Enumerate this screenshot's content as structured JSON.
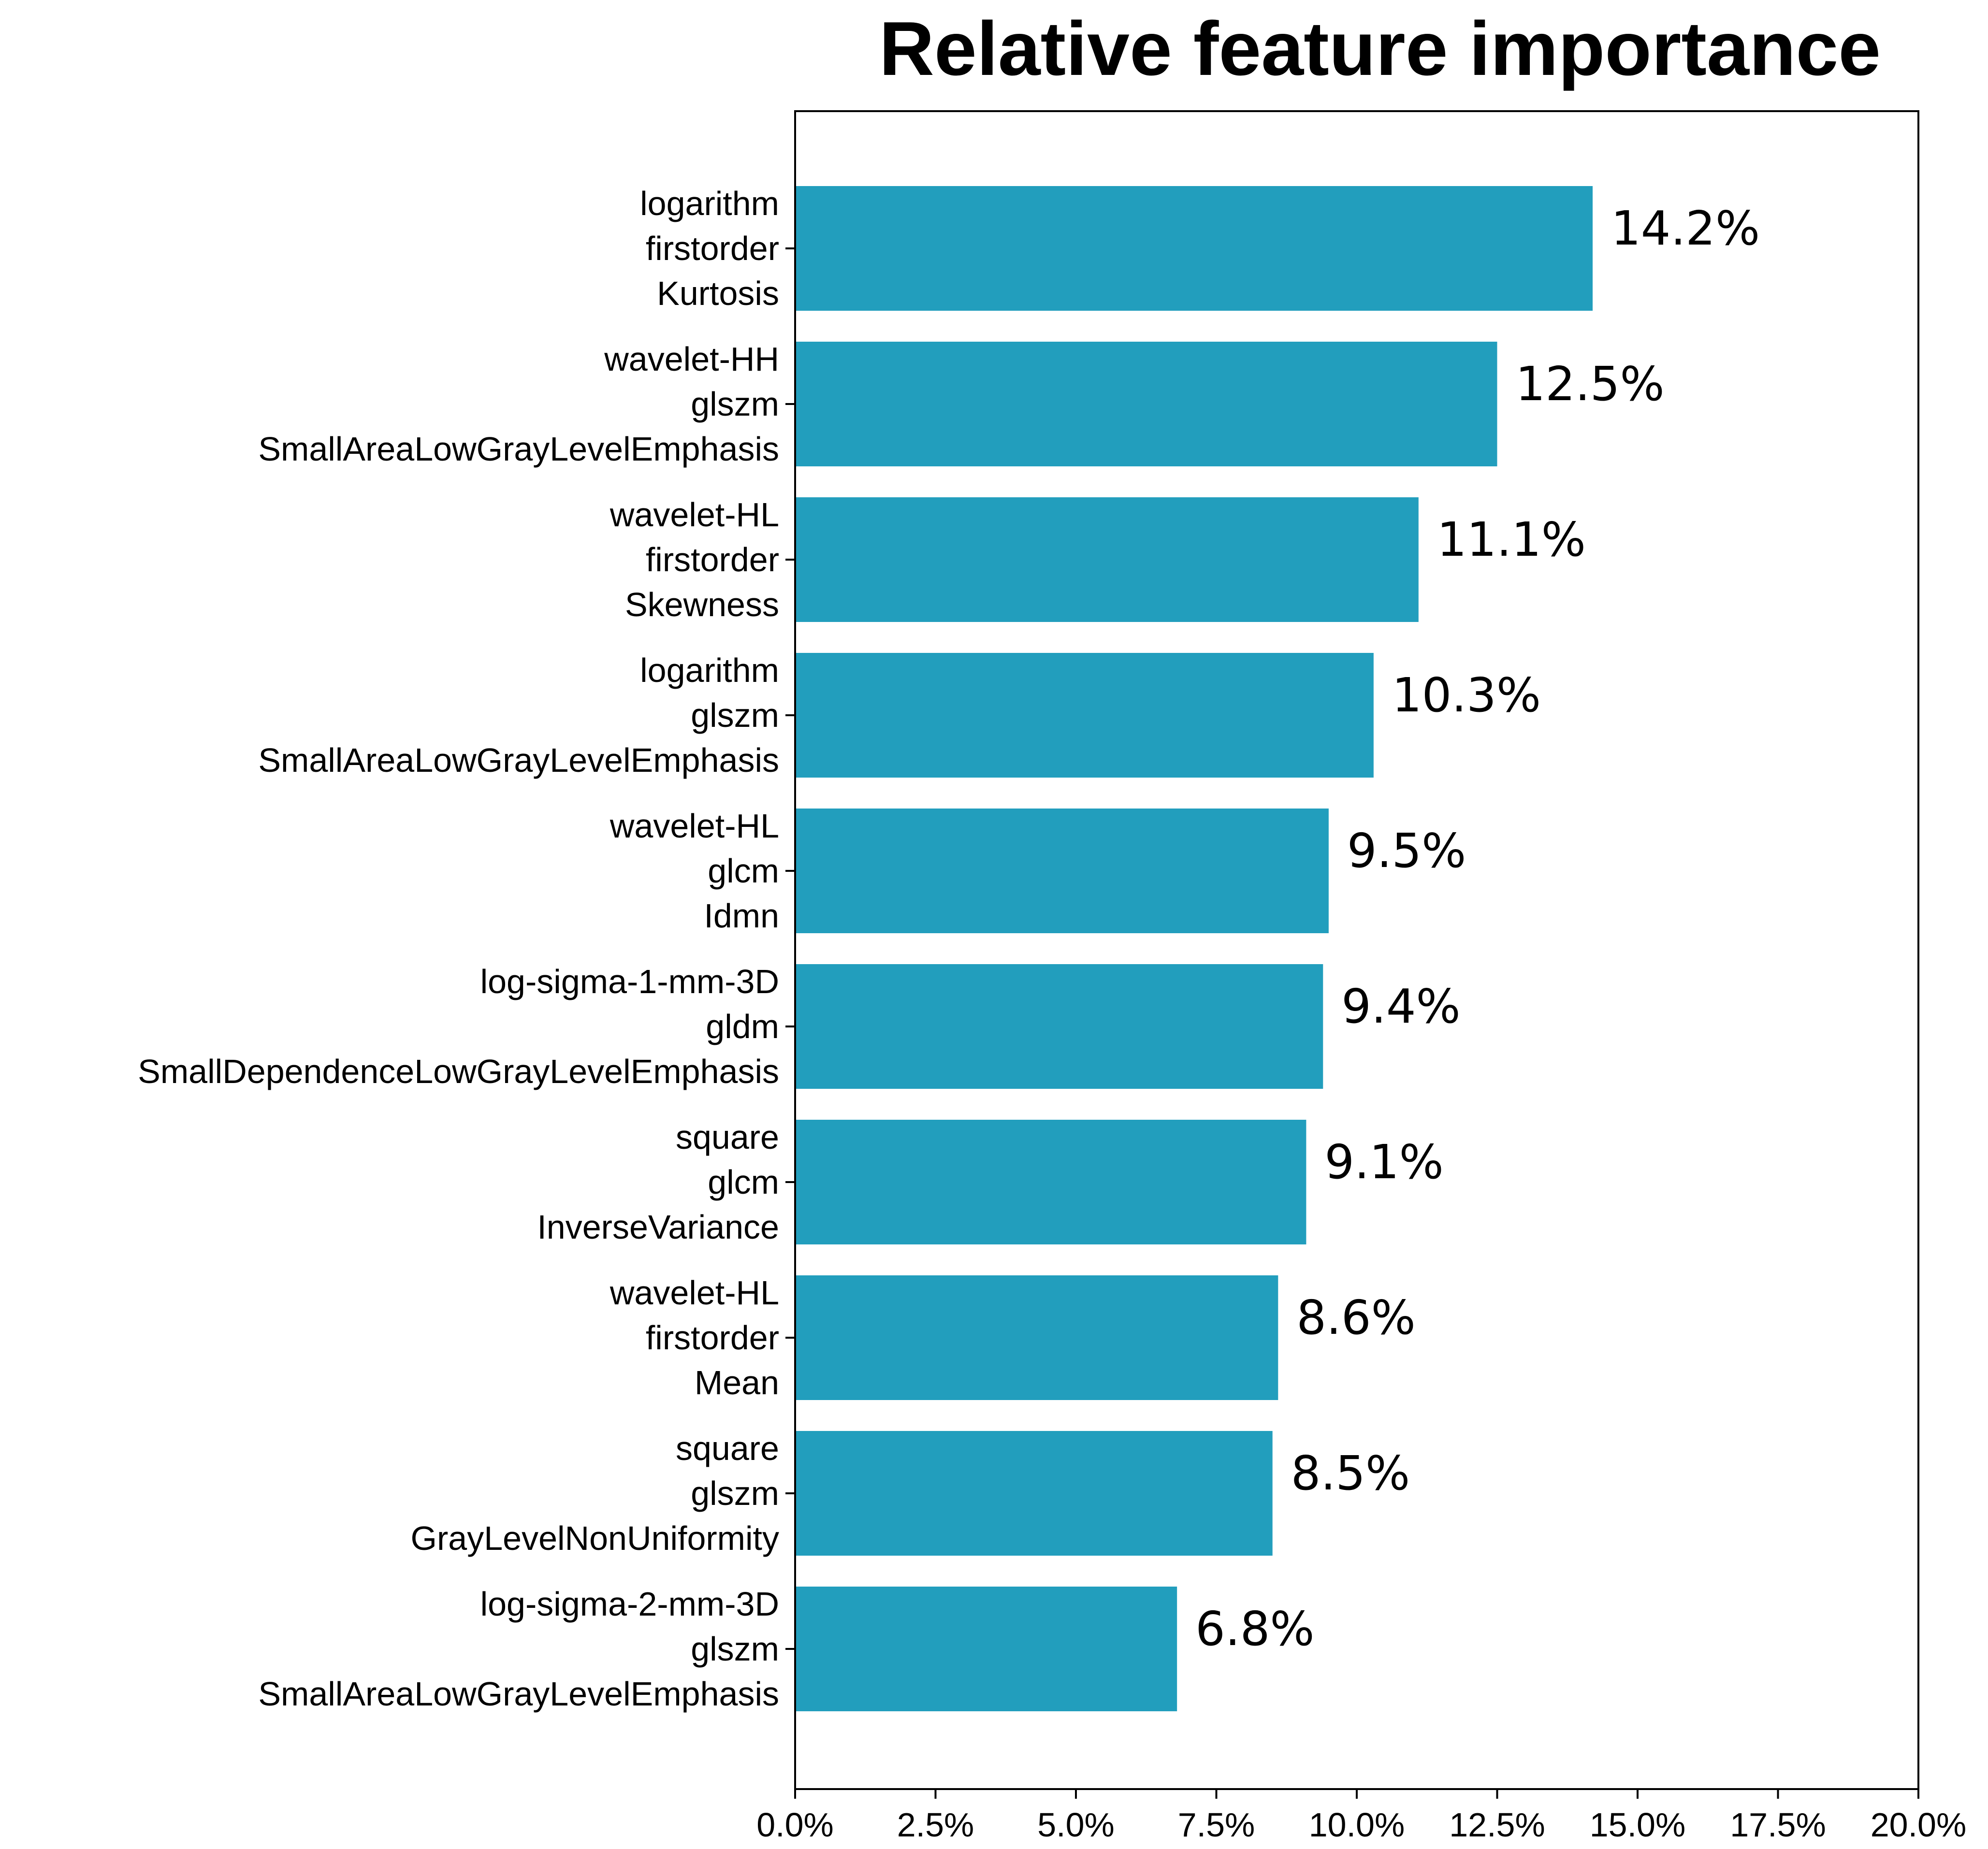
{
  "chart_data": {
    "type": "bar",
    "orientation": "horizontal",
    "title": "Relative feature importance",
    "xlabel": "",
    "ylabel": "",
    "xlim": [
      0,
      20
    ],
    "x_ticks": [
      0,
      2.5,
      5,
      7.5,
      10,
      12.5,
      15,
      17.5,
      20
    ],
    "x_tick_labels": [
      "0.0%",
      "2.5%",
      "5.0%",
      "7.5%",
      "10.0%",
      "12.5%",
      "15.0%",
      "17.5%",
      "20.0%"
    ],
    "grid": false,
    "legend": "none",
    "bar_color": "#229EBD",
    "categories": [
      [
        "logarithm",
        "firstorder",
        "Kurtosis"
      ],
      [
        "wavelet-HH",
        "glszm",
        "SmallAreaLowGrayLevelEmphasis"
      ],
      [
        "wavelet-HL",
        "firstorder",
        "Skewness"
      ],
      [
        "logarithm",
        "glszm",
        "SmallAreaLowGrayLevelEmphasis"
      ],
      [
        "wavelet-HL",
        "glcm",
        "Idmn"
      ],
      [
        "log-sigma-1-mm-3D",
        "gldm",
        "SmallDependenceLowGrayLevelEmphasis"
      ],
      [
        "square",
        "glcm",
        "InverseVariance"
      ],
      [
        "wavelet-HL",
        "firstorder",
        "Mean"
      ],
      [
        "square",
        "glszm",
        "GrayLevelNonUniformity"
      ],
      [
        "log-sigma-2-mm-3D",
        "glszm",
        "SmallAreaLowGrayLevelEmphasis"
      ]
    ],
    "values": [
      14.2,
      12.5,
      11.1,
      10.3,
      9.5,
      9.4,
      9.1,
      8.6,
      8.5,
      6.8
    ],
    "data_labels": [
      "14.2%",
      "12.5%",
      "11.1%",
      "10.3%",
      "9.5%",
      "9.4%",
      "9.1%",
      "8.6%",
      "8.5%",
      "6.8%"
    ]
  }
}
